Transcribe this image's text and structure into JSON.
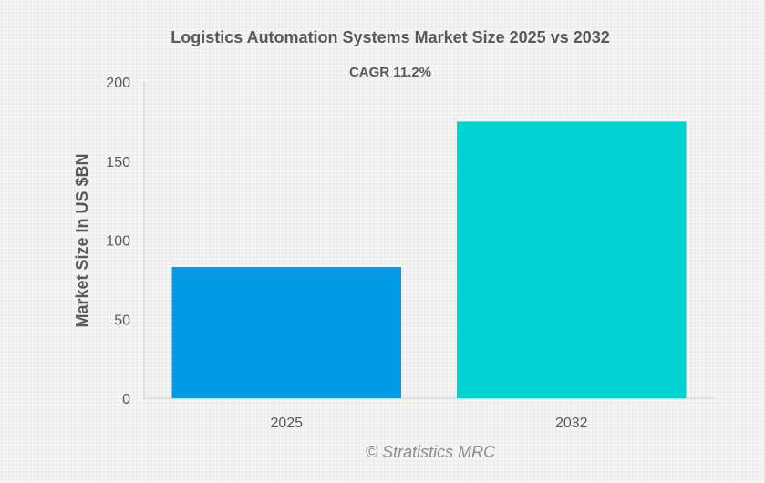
{
  "chart_data": {
    "type": "bar",
    "title": "Logistics Automation Systems Market Size 2025 vs 2032",
    "subtitle": "CAGR 11.2%",
    "ylabel": "Market Size In US $BN",
    "xlabel": "",
    "categories": [
      "2025",
      "2032"
    ],
    "values": [
      83,
      175
    ],
    "colors": [
      "#039be5",
      "#00d3d3"
    ],
    "ylim": [
      0,
      200
    ],
    "yticks": [
      "0",
      "50",
      "100",
      "150",
      "200"
    ],
    "grid": false,
    "legend": "none"
  },
  "source": "© Stratistics MRC"
}
